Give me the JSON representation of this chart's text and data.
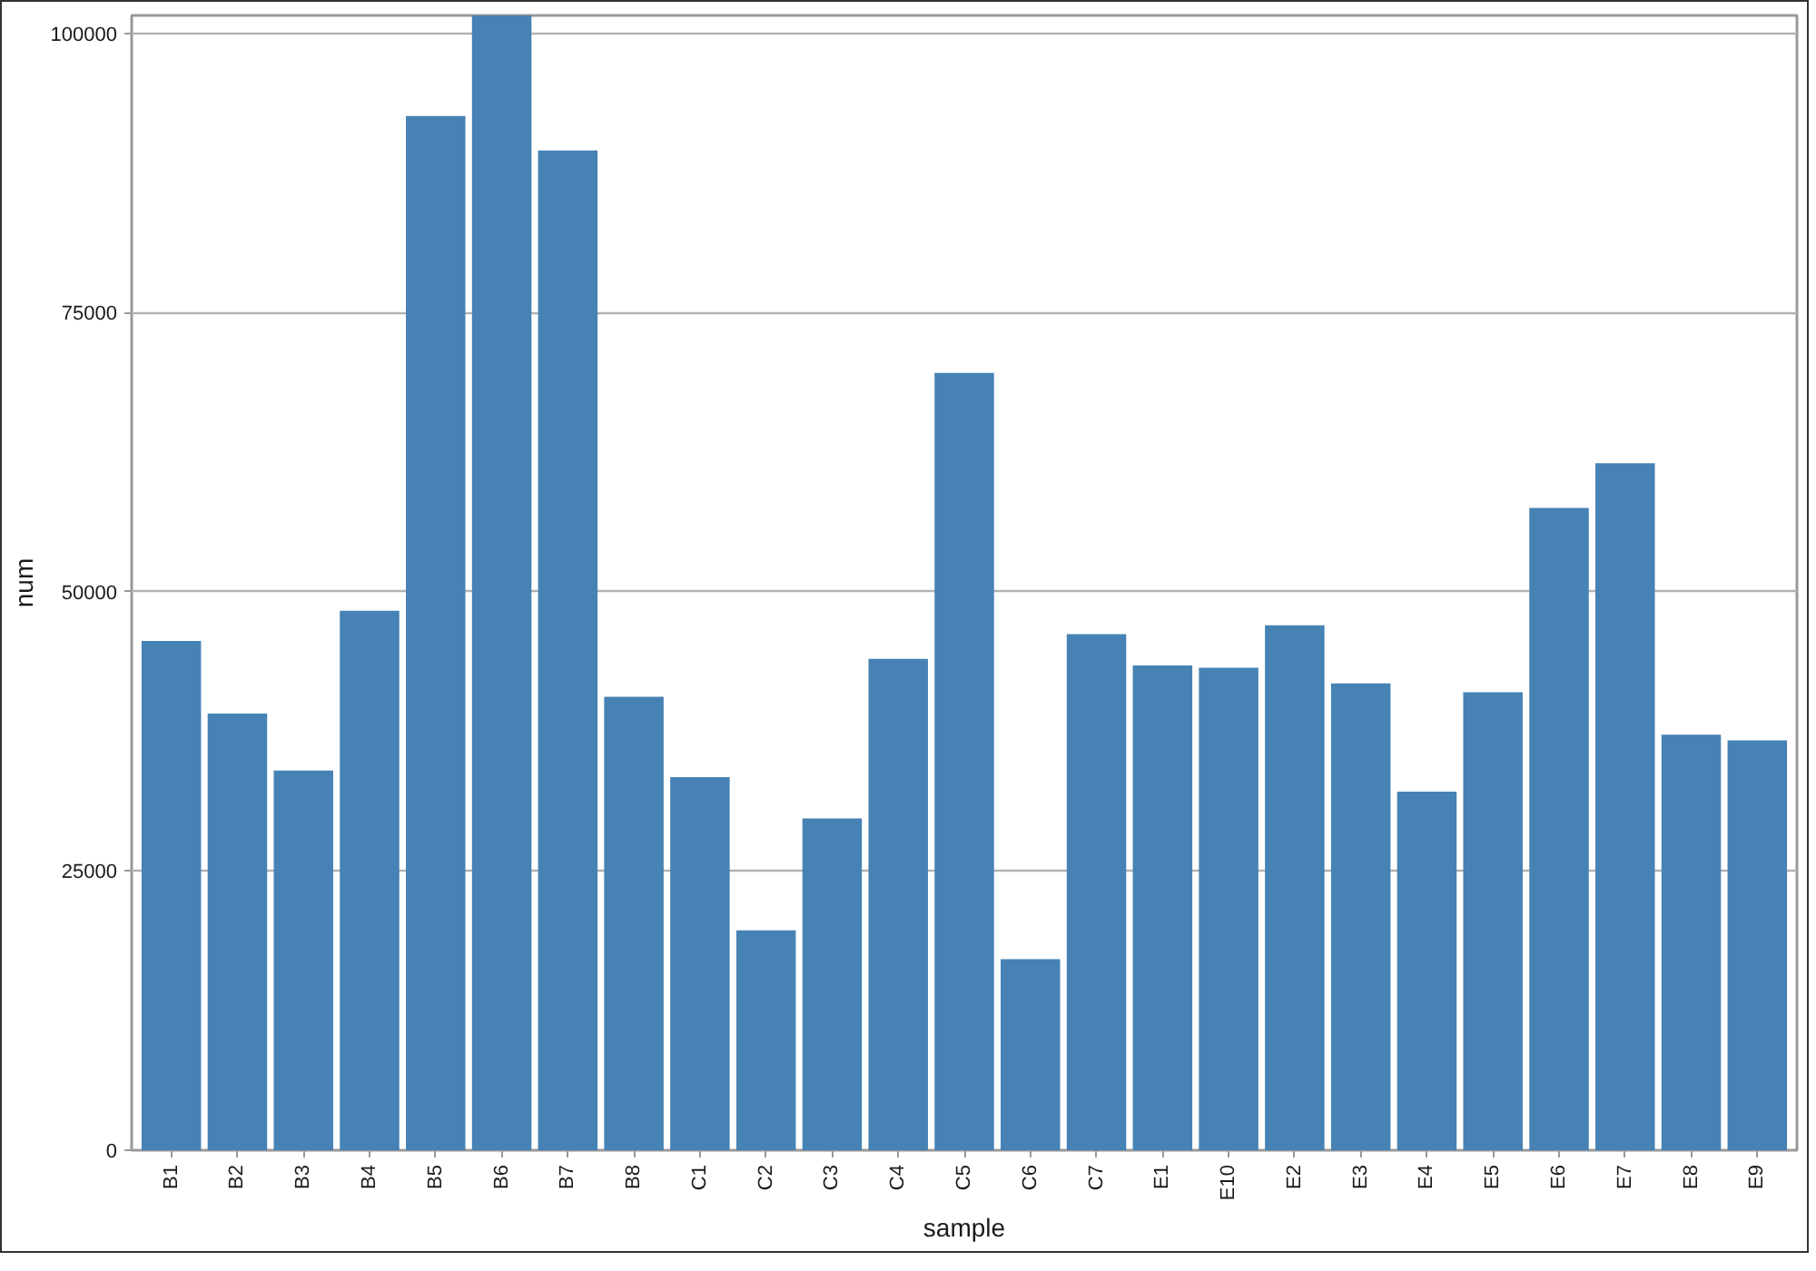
{
  "chart_data": {
    "type": "bar",
    "xlabel": "sample",
    "ylabel": "num",
    "categories": [
      "B1",
      "B2",
      "B3",
      "B4",
      "B5",
      "B6",
      "B7",
      "B8",
      "C1",
      "C2",
      "C3",
      "C4",
      "C5",
      "C6",
      "C7",
      "E1",
      "E10",
      "E2",
      "E3",
      "E4",
      "E5",
      "E6",
      "E7",
      "E8",
      "E9"
    ],
    "values": [
      45600,
      39100,
      34000,
      48300,
      92600,
      101600,
      89500,
      40600,
      33400,
      19700,
      29700,
      44000,
      69600,
      17100,
      46200,
      43400,
      43200,
      47000,
      41800,
      32100,
      41000,
      57500,
      61500,
      37200,
      36700
    ],
    "color": "#4682b4",
    "ylim": [
      0,
      101600
    ],
    "yticks": [
      0,
      25000,
      50000,
      75000,
      100000
    ],
    "grid": "y"
  }
}
